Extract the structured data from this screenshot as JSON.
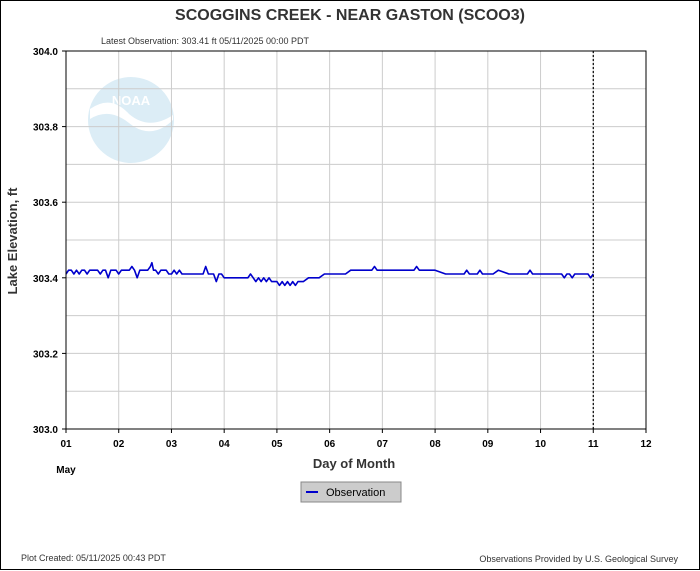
{
  "colors": {
    "series": "#0000cc",
    "grid": "#cccccc",
    "legend_bg": "#cccccc",
    "watermark": "#d9ecf6"
  },
  "chart_data": {
    "type": "line",
    "title": "SCOGGINS CREEK - NEAR GASTON  (SCOO3)",
    "subtitle": "Latest Observation: 303.41 ft 05/11/2025 00:00 PDT",
    "xlabel": "Day of Month",
    "xlabel_month": "May",
    "ylabel": "Lake Elevation, ft",
    "xlim": [
      1,
      12
    ],
    "ylim": [
      303.0,
      304.0
    ],
    "x_ticks": [
      "01",
      "02",
      "03",
      "04",
      "05",
      "06",
      "07",
      "08",
      "09",
      "10",
      "11",
      "12"
    ],
    "y_ticks": [
      "303.0",
      "303.2",
      "303.4",
      "303.6",
      "303.8",
      "304.0"
    ],
    "grid": true,
    "legend_position": "bottom-center",
    "current_time_marker_x": 11.0,
    "series": [
      {
        "name": "Observation",
        "x": [
          1.0,
          1.05,
          1.1,
          1.15,
          1.2,
          1.25,
          1.3,
          1.35,
          1.4,
          1.45,
          1.5,
          1.55,
          1.6,
          1.65,
          1.7,
          1.75,
          1.8,
          1.85,
          1.9,
          1.95,
          2.0,
          2.05,
          2.1,
          2.15,
          2.2,
          2.25,
          2.3,
          2.35,
          2.4,
          2.45,
          2.5,
          2.55,
          2.6,
          2.63,
          2.66,
          2.7,
          2.75,
          2.8,
          2.85,
          2.9,
          2.95,
          3.0,
          3.05,
          3.1,
          3.15,
          3.2,
          3.3,
          3.4,
          3.5,
          3.6,
          3.65,
          3.7,
          3.75,
          3.8,
          3.85,
          3.9,
          3.95,
          4.0,
          4.2,
          4.4,
          4.45,
          4.5,
          4.55,
          4.6,
          4.65,
          4.7,
          4.75,
          4.8,
          4.85,
          4.9,
          4.95,
          5.0,
          5.05,
          5.1,
          5.15,
          5.2,
          5.25,
          5.3,
          5.35,
          5.4,
          5.45,
          5.5,
          5.6,
          5.7,
          5.8,
          5.9,
          6.0,
          6.2,
          6.3,
          6.4,
          6.6,
          6.8,
          6.85,
          6.9,
          7.0,
          7.2,
          7.3,
          7.4,
          7.6,
          7.65,
          7.7,
          7.8,
          7.9,
          8.0,
          8.2,
          8.4,
          8.55,
          8.6,
          8.65,
          8.8,
          8.85,
          8.9,
          9.0,
          9.1,
          9.2,
          9.4,
          9.6,
          9.75,
          9.8,
          9.85,
          9.9,
          10.0,
          10.2,
          10.4,
          10.45,
          10.5,
          10.55,
          10.6,
          10.65,
          10.7,
          10.8,
          10.9,
          10.95,
          11.0
        ],
        "values": [
          303.41,
          303.42,
          303.42,
          303.41,
          303.42,
          303.41,
          303.42,
          303.42,
          303.41,
          303.42,
          303.42,
          303.42,
          303.42,
          303.41,
          303.42,
          303.42,
          303.4,
          303.42,
          303.42,
          303.42,
          303.41,
          303.42,
          303.42,
          303.42,
          303.42,
          303.43,
          303.42,
          303.4,
          303.42,
          303.42,
          303.42,
          303.42,
          303.43,
          303.44,
          303.42,
          303.42,
          303.41,
          303.42,
          303.42,
          303.42,
          303.41,
          303.41,
          303.42,
          303.41,
          303.42,
          303.41,
          303.41,
          303.41,
          303.41,
          303.41,
          303.43,
          303.41,
          303.41,
          303.41,
          303.39,
          303.41,
          303.41,
          303.4,
          303.4,
          303.4,
          303.4,
          303.41,
          303.4,
          303.39,
          303.4,
          303.39,
          303.4,
          303.39,
          303.4,
          303.39,
          303.39,
          303.39,
          303.38,
          303.39,
          303.38,
          303.39,
          303.38,
          303.39,
          303.38,
          303.39,
          303.39,
          303.39,
          303.4,
          303.4,
          303.4,
          303.41,
          303.41,
          303.41,
          303.41,
          303.42,
          303.42,
          303.42,
          303.43,
          303.42,
          303.42,
          303.42,
          303.42,
          303.42,
          303.42,
          303.43,
          303.42,
          303.42,
          303.42,
          303.42,
          303.41,
          303.41,
          303.41,
          303.42,
          303.41,
          303.41,
          303.42,
          303.41,
          303.41,
          303.41,
          303.42,
          303.41,
          303.41,
          303.41,
          303.42,
          303.41,
          303.41,
          303.41,
          303.41,
          303.41,
          303.4,
          303.41,
          303.41,
          303.4,
          303.41,
          303.41,
          303.41,
          303.41,
          303.4,
          303.41
        ]
      }
    ]
  },
  "footer": {
    "created": "Plot Created: 05/11/2025 00:43 PDT",
    "source": "Observations Provided by U.S. Geological Survey"
  },
  "watermark": {
    "logo_text": "NOAA",
    "icon": "noaa-logo-icon"
  }
}
